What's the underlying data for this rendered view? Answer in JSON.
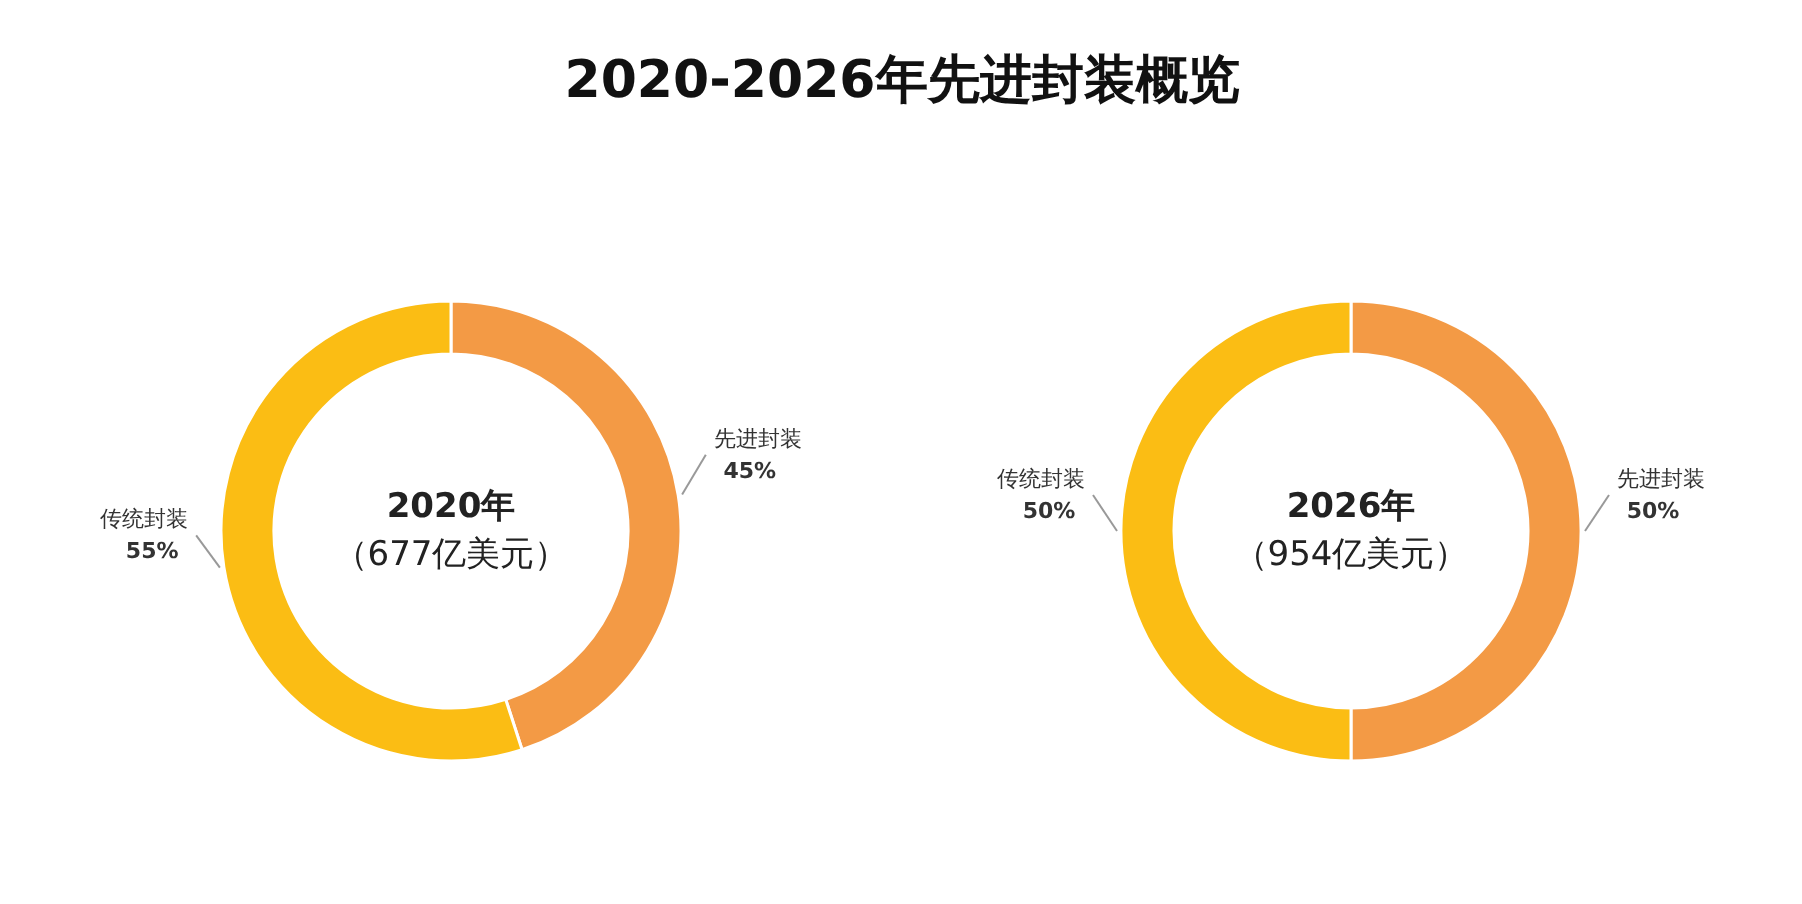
{
  "chart_data": [
    {
      "type": "other",
      "title": "2020-2026年先进封装概览"
    },
    {
      "type": "donut",
      "annotations": [
        "2020年",
        "（677亿美元）"
      ],
      "categories": [
        "先进封装",
        "传统封装"
      ],
      "values": [
        45,
        55
      ],
      "colors": [
        "#f39a45",
        "#fbbd14"
      ],
      "value_labels": [
        "45%",
        "55%"
      ]
    },
    {
      "type": "donut",
      "annotations": [
        "2026年",
        "（954亿美元）"
      ],
      "categories": [
        "先进封装",
        "传统封装"
      ],
      "values": [
        50,
        50
      ],
      "colors": [
        "#f39a45",
        "#fbbd14"
      ],
      "value_labels": [
        "50%",
        "50%"
      ]
    }
  ]
}
